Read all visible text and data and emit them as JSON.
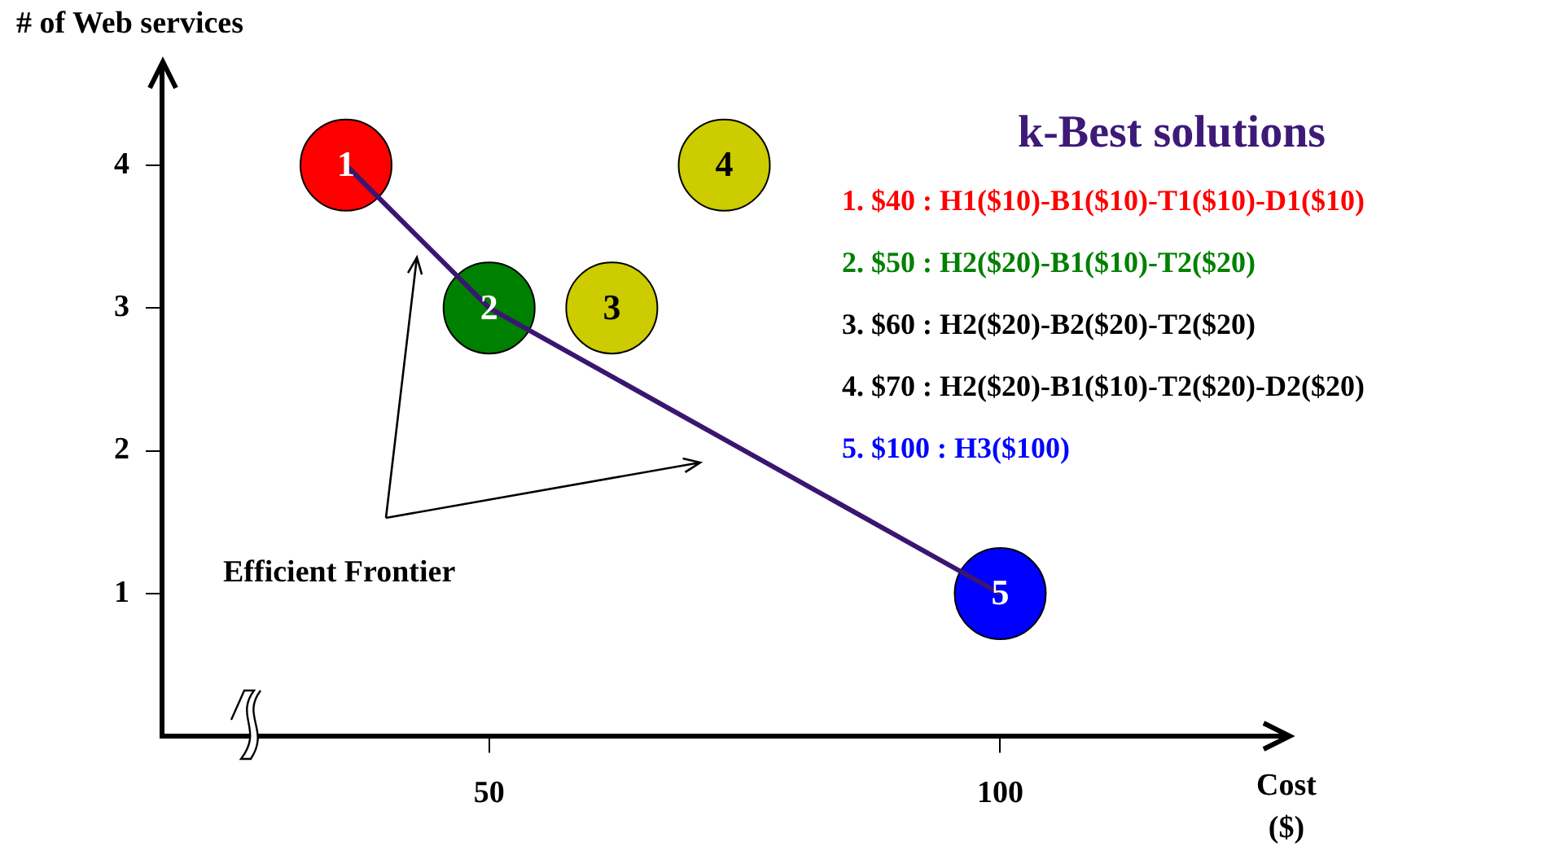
{
  "chart_data": {
    "type": "scatter",
    "xlabel": "Cost ($)",
    "ylabel": "# of Web services",
    "xlim": [
      18,
      128
    ],
    "ylim": [
      0,
      4.7
    ],
    "xticks": [
      50,
      100
    ],
    "yticks": [
      1,
      2,
      3,
      4
    ],
    "grid": false,
    "legend": false,
    "marker": "circle",
    "series": [
      {
        "type": "line",
        "color": "#3a1670",
        "x": [
          36,
          50,
          100
        ],
        "values": [
          4,
          3,
          1
        ],
        "marker": "none",
        "line_style": "solid"
      },
      {
        "name": "1",
        "color": "#ff0000",
        "x": [
          36
        ],
        "values": [
          4
        ]
      },
      {
        "name": "2",
        "color": "#008000",
        "x": [
          50
        ],
        "values": [
          3
        ]
      },
      {
        "name": "3",
        "color": "#cccc00",
        "x": [
          62
        ],
        "values": [
          3
        ]
      },
      {
        "name": "4",
        "color": "#cccc00",
        "x": [
          73
        ],
        "values": [
          4
        ]
      },
      {
        "name": "5",
        "color": "#0000ff",
        "x": [
          100
        ],
        "values": [
          1
        ]
      }
    ],
    "annotations": [
      "Efficient Frontier",
      "k-Best solutions",
      "1. $40 : H1($10)-B1($10)-T1($10)-D1($10)",
      "2. $50 : H2($20)-B1($10)-T2($20)",
      "3. $60 : H2($20)-B2($20)-T2($20)",
      "4. $70 : H2($20)-B1($10)-T2($20)-D2($20)",
      "5. $100 : H3($100)"
    ]
  }
}
